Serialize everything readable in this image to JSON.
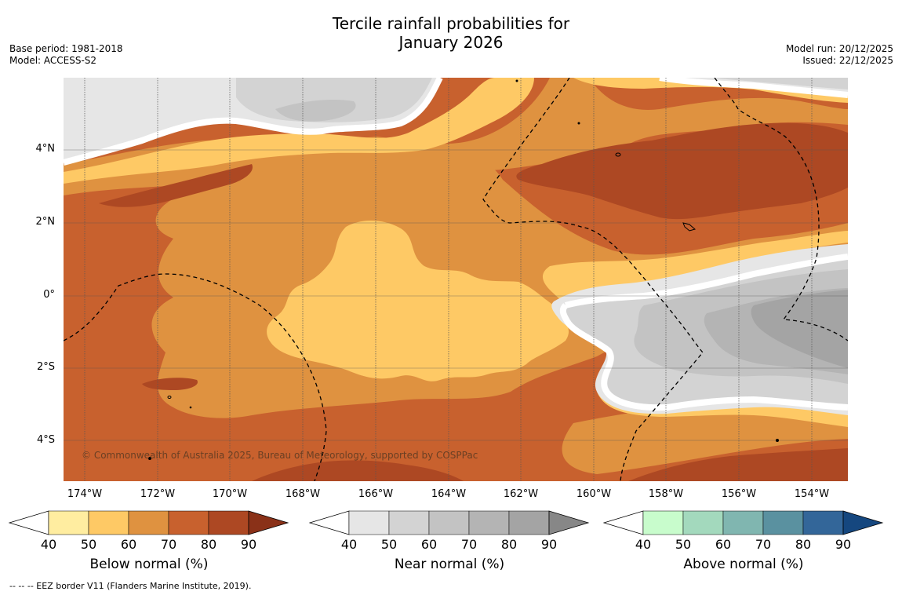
{
  "title": {
    "line1": "Tercile rainfall probabilities for",
    "line2": "January 2026"
  },
  "meta_left": {
    "base_period": "Base period: 1981-2018",
    "model": "Model: ACCESS-S2"
  },
  "meta_right": {
    "model_run": "Model run: 20/12/2025",
    "issued": "Issued: 22/12/2025"
  },
  "map": {
    "x_ticks": [
      "174°W",
      "172°W",
      "170°W",
      "168°W",
      "166°W",
      "164°W",
      "162°W",
      "160°W",
      "158°W",
      "156°W",
      "154°W"
    ],
    "y_ticks": [
      "4°N",
      "2°N",
      "0°",
      "2°S",
      "4°S"
    ],
    "copyright": "© Commonwealth of Australia 2025, Bureau of Meteorology, supported by COSPPac"
  },
  "colorbars": {
    "below": {
      "title": "Below normal (%)",
      "ticks": [
        "40",
        "50",
        "60",
        "70",
        "80",
        "90"
      ],
      "colors": [
        "#ffeda0",
        "#fec965",
        "#df9240",
        "#c8612e",
        "#ad4823",
        "#8a3118"
      ]
    },
    "near": {
      "title": "Near normal (%)",
      "ticks": [
        "40",
        "50",
        "60",
        "70",
        "80",
        "90"
      ],
      "colors": [
        "#e6e6e6",
        "#d3d3d3",
        "#c3c3c3",
        "#b4b4b4",
        "#a4a4a4",
        "#878787"
      ]
    },
    "above": {
      "title": "Above normal (%)",
      "ticks": [
        "40",
        "50",
        "60",
        "70",
        "80",
        "90"
      ],
      "colors": [
        "#c8fccc",
        "#a3d9bd",
        "#80b6b0",
        "#5a91a0",
        "#336699",
        "#15477f"
      ]
    }
  },
  "footer": "--  --  -- EEZ border V11 (Flanders Marine Institute, 2019)."
}
